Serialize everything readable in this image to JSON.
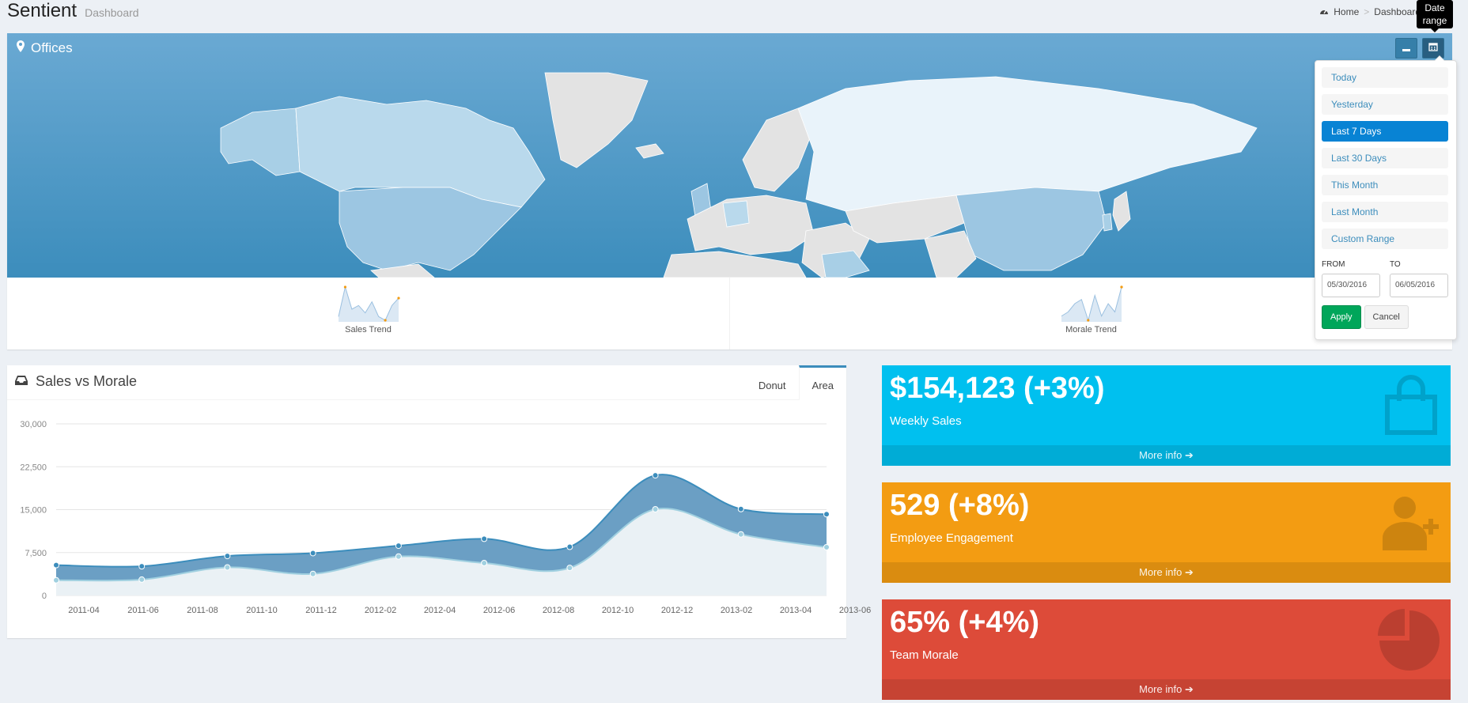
{
  "header": {
    "title": "Sentient",
    "subtitle": "Dashboard"
  },
  "breadcrumb": {
    "home": "Home",
    "current": "Dashboard"
  },
  "tooltip": "Date range",
  "offices": {
    "title": "Offices",
    "sparklines": [
      {
        "label": "Sales Trend",
        "values": [
          1,
          9,
          3,
          4,
          2,
          5,
          1,
          0,
          4,
          6
        ]
      },
      {
        "label": "Morale Trend",
        "values": [
          1,
          2,
          4,
          5,
          0,
          6,
          1,
          4,
          2,
          8
        ]
      }
    ]
  },
  "daterange": {
    "ranges": [
      "Today",
      "Yesterday",
      "Last 7 Days",
      "Last 30 Days",
      "This Month",
      "Last Month",
      "Custom Range"
    ],
    "active_index": 2,
    "from_label": "FROM",
    "to_label": "TO",
    "from_value": "05/30/2016",
    "to_value": "06/05/2016",
    "apply": "Apply",
    "cancel": "Cancel"
  },
  "sales_chart": {
    "title": "Sales vs Morale",
    "tabs": [
      "Donut",
      "Area"
    ],
    "active_tab": "Area"
  },
  "chart_data": {
    "type": "area",
    "x": [
      "2011-03",
      "2011-06",
      "2011-09",
      "2011-12",
      "2012-03",
      "2012-06",
      "2012-09",
      "2012-12",
      "2013-03",
      "2013-06"
    ],
    "x_ticks": [
      "2011-04",
      "2011-06",
      "2011-08",
      "2011-10",
      "2011-12",
      "2012-02",
      "2012-04",
      "2012-06",
      "2012-08",
      "2012-10",
      "2012-12",
      "2013-02",
      "2013-04",
      "2013-06"
    ],
    "y_ticks": [
      "30,000",
      "22,500",
      "15,000",
      "7,500",
      "0"
    ],
    "ylim": [
      0,
      30000
    ],
    "series": [
      {
        "values": [
          2666,
          2778,
          4912,
          3767,
          6810,
          5670,
          4820,
          15073,
          10687,
          8432
        ],
        "color": "#a0d0e0"
      },
      {
        "values": [
          5300,
          5100,
          6900,
          7400,
          8700,
          9900,
          8500,
          21000,
          15100,
          14200
        ],
        "color": "#3c8dbc"
      }
    ]
  },
  "stats": [
    {
      "value": "$154,123 (+3%)",
      "label": "Weekly Sales",
      "more": "More info",
      "color": "#00c0ef",
      "icon": "bag-icon"
    },
    {
      "value": "529 (+8%)",
      "label": "Employee Engagement",
      "more": "More info",
      "color": "#f39c12",
      "icon": "person-add-icon"
    },
    {
      "value": "65% (+4%)",
      "label": "Team Morale",
      "more": "More info",
      "color": "#dd4b39",
      "icon": "pie-icon"
    }
  ]
}
